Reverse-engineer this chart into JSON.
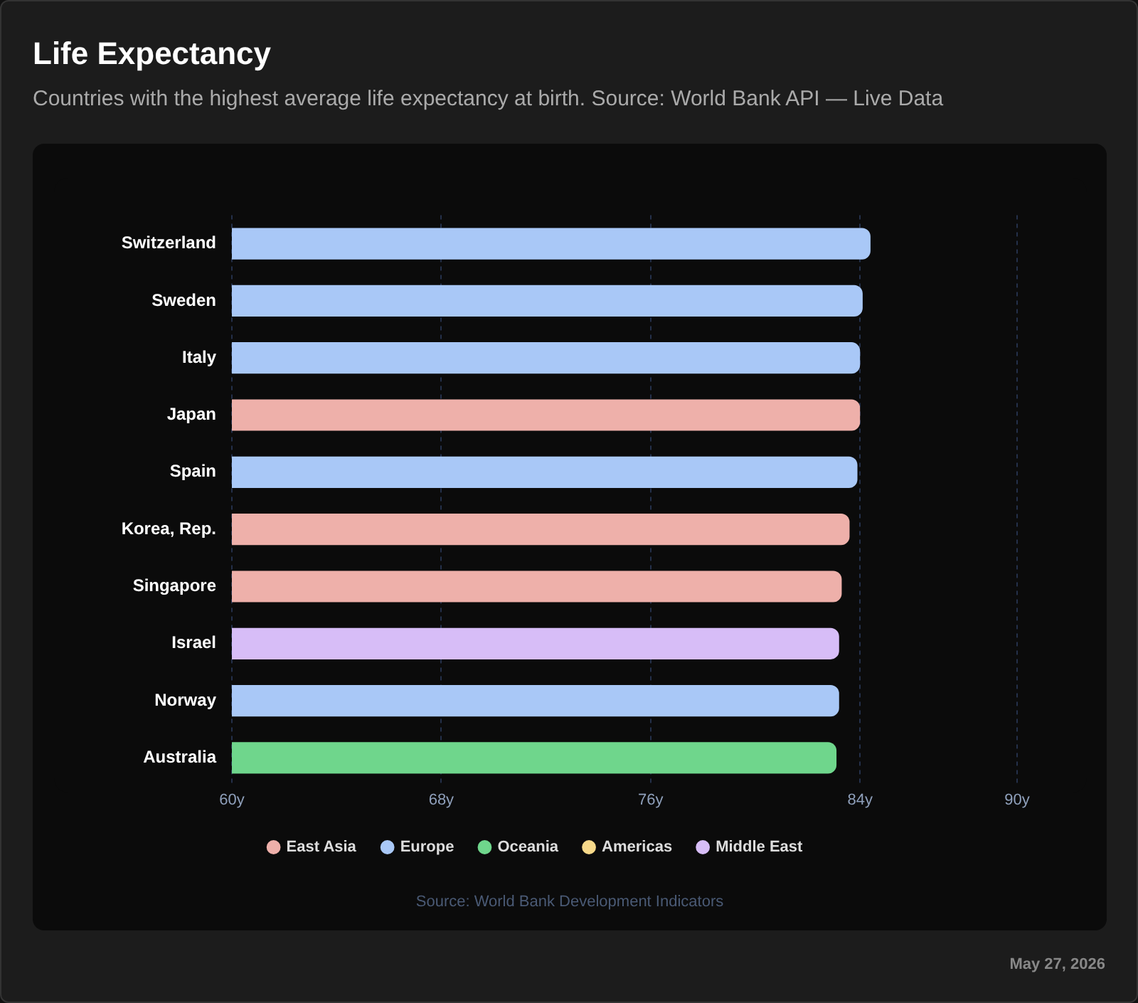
{
  "chart_data": {
    "type": "bar",
    "title": "Life Expectancy",
    "subtitle": "Countries with the highest average life expectancy at birth. Source: World Bank API — Live Data",
    "orientation": "horizontal",
    "stacked": true,
    "categories": [
      "Switzerland",
      "Sweden",
      "Italy",
      "Japan",
      "Spain",
      "Korea, Rep.",
      "Singapore",
      "Israel",
      "Norway",
      "Australia"
    ],
    "series": [
      {
        "name": "East Asia",
        "color": "#eeb0aa",
        "values": [
          null,
          null,
          null,
          84.0,
          null,
          83.6,
          83.3,
          null,
          null,
          null
        ]
      },
      {
        "name": "Europe",
        "color": "#a9c8f7",
        "values": [
          84.4,
          84.1,
          84.0,
          null,
          83.9,
          null,
          null,
          null,
          83.2,
          null
        ]
      },
      {
        "name": "Oceania",
        "color": "#6fd68c",
        "values": [
          null,
          null,
          null,
          null,
          null,
          null,
          null,
          null,
          null,
          83.1
        ]
      },
      {
        "name": "Americas",
        "color": "#f7d98a",
        "values": [
          null,
          null,
          null,
          null,
          null,
          null,
          null,
          null,
          null,
          null
        ]
      },
      {
        "name": "Middle East",
        "color": "#d7bdf7",
        "values": [
          null,
          null,
          null,
          null,
          null,
          null,
          null,
          83.2,
          null,
          null
        ]
      }
    ],
    "xlim": [
      60,
      90
    ],
    "xticks": [
      {
        "value": 60,
        "label": "60y"
      },
      {
        "value": 68,
        "label": "68y"
      },
      {
        "value": 76,
        "label": "76y"
      },
      {
        "value": 84,
        "label": "84y"
      },
      {
        "value": 90,
        "label": "90y"
      }
    ],
    "grid": "x",
    "legend": "bottom",
    "annotations": [
      "Source: World Bank Development Indicators",
      "May 27, 2026"
    ]
  }
}
